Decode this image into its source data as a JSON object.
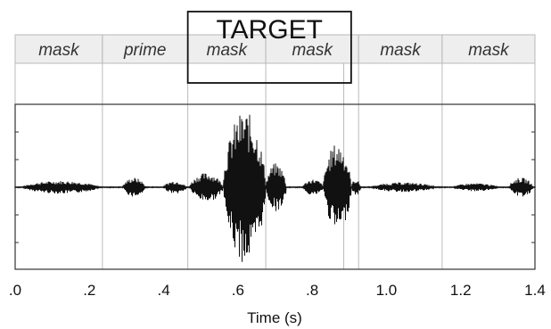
{
  "figure": {
    "target_label": "TARGET",
    "segments": [
      {
        "label": "mask",
        "start": 0.0,
        "end": 0.235
      },
      {
        "label": "prime",
        "start": 0.235,
        "end": 0.465
      },
      {
        "label": "mask",
        "start": 0.465,
        "end": 0.675
      },
      {
        "label": "mask",
        "start": 0.675,
        "end": 0.925
      },
      {
        "label": "mask",
        "start": 0.925,
        "end": 1.15
      },
      {
        "label": "mask",
        "start": 1.15,
        "end": 1.4
      }
    ],
    "target_window": {
      "start": 0.465,
      "end": 0.905
    },
    "boundaries": [
      0.235,
      0.465,
      0.675,
      0.885,
      0.925,
      1.15
    ],
    "x_axis": {
      "label": "Time (s)",
      "range": [
        0.0,
        1.4
      ],
      "ticks": [
        {
          "value": 0.0,
          "label": ".0"
        },
        {
          "value": 0.2,
          "label": ".2"
        },
        {
          "value": 0.4,
          "label": ".4"
        },
        {
          "value": 0.6,
          "label": ".6"
        },
        {
          "value": 0.8,
          "label": ".8"
        },
        {
          "value": 1.0,
          "label": "1.0"
        },
        {
          "value": 1.2,
          "label": "1.2"
        },
        {
          "value": 1.4,
          "label": "1.4"
        }
      ]
    },
    "waveform": {
      "bursts": [
        {
          "start": 0.02,
          "end": 0.225,
          "amp": 0.08
        },
        {
          "start": 0.29,
          "end": 0.35,
          "amp": 0.12
        },
        {
          "start": 0.4,
          "end": 0.46,
          "amp": 0.08
        },
        {
          "start": 0.47,
          "end": 0.56,
          "amp": 0.18
        },
        {
          "start": 0.56,
          "end": 0.675,
          "amp": 0.95
        },
        {
          "start": 0.675,
          "end": 0.73,
          "amp": 0.3
        },
        {
          "start": 0.775,
          "end": 0.83,
          "amp": 0.1
        },
        {
          "start": 0.83,
          "end": 0.905,
          "amp": 0.55
        },
        {
          "start": 0.905,
          "end": 0.93,
          "amp": 0.1
        },
        {
          "start": 0.96,
          "end": 1.13,
          "amp": 0.06
        },
        {
          "start": 1.18,
          "end": 1.3,
          "amp": 0.05
        },
        {
          "start": 1.33,
          "end": 1.395,
          "amp": 0.12
        }
      ]
    }
  }
}
